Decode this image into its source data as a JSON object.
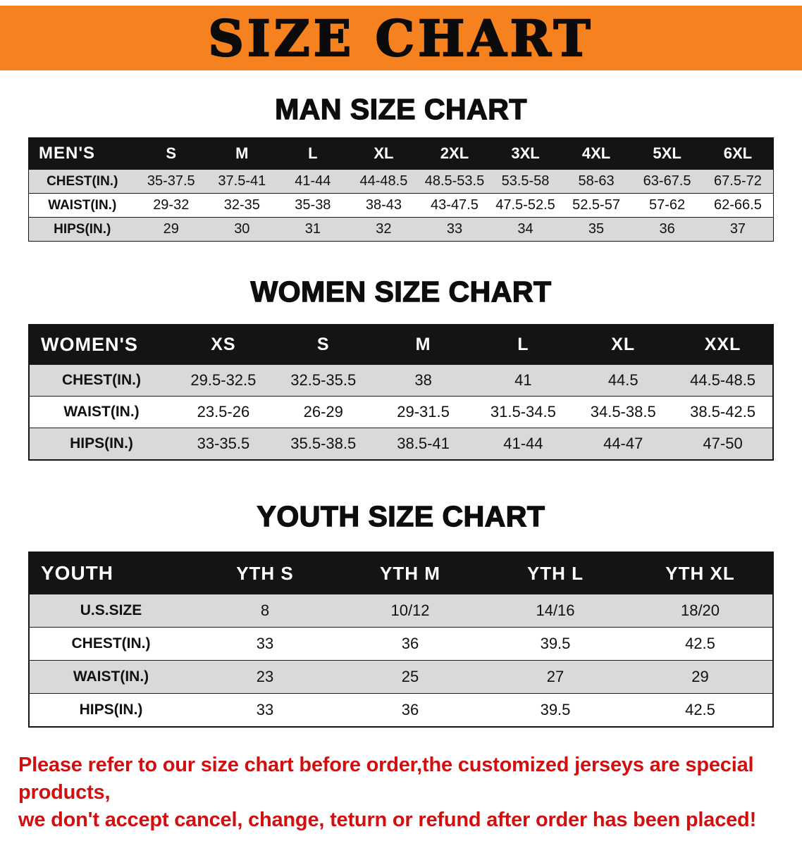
{
  "banner": {
    "title": "SIZE CHART"
  },
  "colors": {
    "banner_bg": "#f5821f",
    "header_bg": "#141414",
    "row_shade": "#d9d9d9",
    "disclaimer_red": "#d01010",
    "text": "#111111",
    "page_bg": "#ffffff"
  },
  "chart_data": [
    {
      "type": "table",
      "title": "MAN SIZE CHART",
      "columns": [
        "MEN'S",
        "S",
        "M",
        "L",
        "XL",
        "2XL",
        "3XL",
        "4XL",
        "5XL",
        "6XL"
      ],
      "rows": [
        {
          "label": "CHEST(IN.)",
          "values": [
            "35-37.5",
            "37.5-41",
            "41-44",
            "44-48.5",
            "48.5-53.5",
            "53.5-58",
            "58-63",
            "63-67.5",
            "67.5-72"
          ]
        },
        {
          "label": "WAIST(IN.)",
          "values": [
            "29-32",
            "32-35",
            "35-38",
            "38-43",
            "43-47.5",
            "47.5-52.5",
            "52.5-57",
            "57-62",
            "62-66.5"
          ]
        },
        {
          "label": "HIPS(IN.)",
          "values": [
            "29",
            "30",
            "31",
            "32",
            "33",
            "34",
            "35",
            "36",
            "37"
          ]
        }
      ]
    },
    {
      "type": "table",
      "title": "WOMEN SIZE CHART",
      "columns": [
        "WOMEN'S",
        "XS",
        "S",
        "M",
        "L",
        "XL",
        "XXL"
      ],
      "rows": [
        {
          "label": "CHEST(IN.)",
          "values": [
            "29.5-32.5",
            "32.5-35.5",
            "38",
            "41",
            "44.5",
            "44.5-48.5"
          ]
        },
        {
          "label": "WAIST(IN.)",
          "values": [
            "23.5-26",
            "26-29",
            "29-31.5",
            "31.5-34.5",
            "34.5-38.5",
            "38.5-42.5"
          ]
        },
        {
          "label": "HIPS(IN.)",
          "values": [
            "33-35.5",
            "35.5-38.5",
            "38.5-41",
            "41-44",
            "44-47",
            "47-50"
          ]
        }
      ]
    },
    {
      "type": "table",
      "title": "YOUTH SIZE CHART",
      "columns": [
        "YOUTH",
        "YTH S",
        "YTH M",
        "YTH L",
        "YTH XL"
      ],
      "rows": [
        {
          "label": "U.S.SIZE",
          "values": [
            "8",
            "10/12",
            "14/16",
            "18/20"
          ]
        },
        {
          "label": "CHEST(IN.)",
          "values": [
            "33",
            "36",
            "39.5",
            "42.5"
          ]
        },
        {
          "label": "WAIST(IN.)",
          "values": [
            "23",
            "25",
            "27",
            "29"
          ]
        },
        {
          "label": "HIPS(IN.)",
          "values": [
            "33",
            "36",
            "39.5",
            "42.5"
          ]
        }
      ]
    }
  ],
  "disclaimer": {
    "line1": "Please refer to our size chart before order,the customized jerseys are special products,",
    "line2": "we don't accept cancel, change, teturn or refund after order has been placed!"
  }
}
